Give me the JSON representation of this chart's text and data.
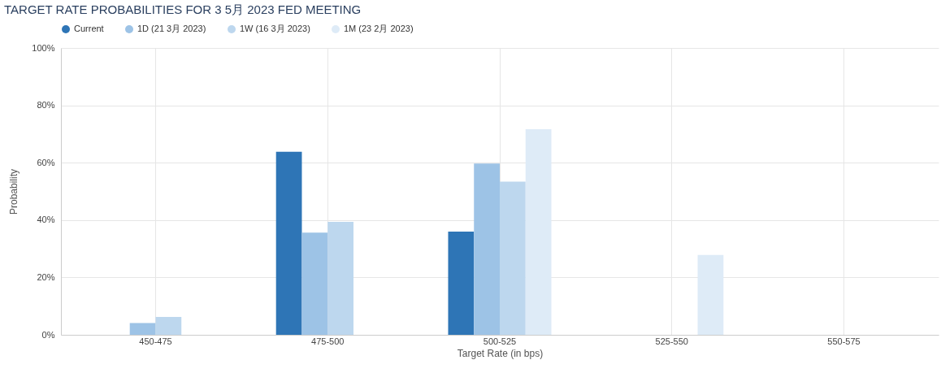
{
  "chart_data": {
    "type": "bar",
    "title": "TARGET RATE PROBABILITIES FOR 3 5月 2023 FED MEETING",
    "xlabel": "Target Rate (in bps)",
    "ylabel": "Probability",
    "categories": [
      "450-475",
      "475-500",
      "500-525",
      "525-550",
      "550-575"
    ],
    "series": [
      {
        "name": "Current",
        "color": "#2e75b6",
        "values": [
          0,
          63.8,
          36.0,
          0,
          0
        ]
      },
      {
        "name": "1D (21 3月 2023)",
        "color": "#9dc3e6",
        "values": [
          4.1,
          35.6,
          59.7,
          0,
          0
        ]
      },
      {
        "name": "1W (16 3月 2023)",
        "color": "#bdd7ee",
        "values": [
          6.2,
          39.4,
          53.4,
          0,
          0
        ]
      },
      {
        "name": "1M (23 2月 2023)",
        "color": "#deebf7",
        "values": [
          0,
          0,
          71.7,
          27.8,
          null
        ]
      }
    ],
    "ylim": [
      0,
      100
    ],
    "yticks": [
      {
        "value": 0,
        "label": "0%"
      },
      {
        "value": 20,
        "label": "20%"
      },
      {
        "value": 40,
        "label": "40%"
      },
      {
        "value": 60,
        "label": "60%"
      },
      {
        "value": 80,
        "label": "80%"
      },
      {
        "value": 100,
        "label": "100%"
      }
    ],
    "grid": true,
    "legend": "top"
  }
}
